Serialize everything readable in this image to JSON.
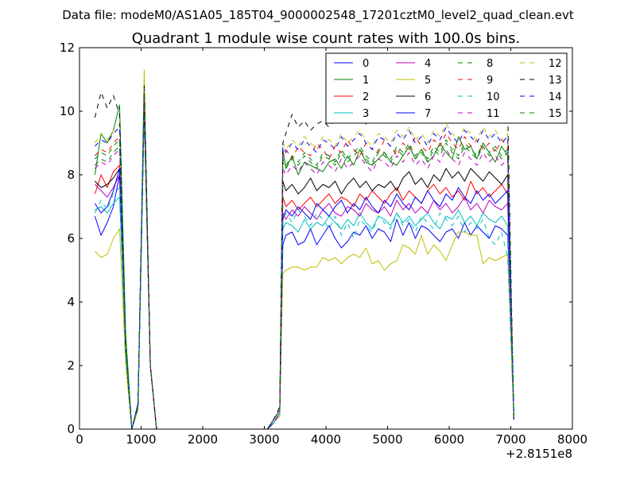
{
  "figure": {
    "suptitle": "Data file: modeM0/AS1A05_185T04_9000002548_17201cztM0_level2_quad_clean.evt"
  },
  "chart_data": {
    "type": "line",
    "title": "Quadrant 1 module wise count rates with 100.0s bins.",
    "xlabel": "",
    "ylabel": "",
    "xlim": [
      0,
      8000
    ],
    "ylim": [
      0,
      12
    ],
    "x_offset_label": "+2.8151e8",
    "xticks": [
      "0",
      "1000",
      "2000",
      "3000",
      "4000",
      "5000",
      "6000",
      "7000",
      "8000"
    ],
    "yticks": [
      "0",
      "2",
      "4",
      "6",
      "8",
      "10",
      "12"
    ],
    "grid": false,
    "legend_position": "top-right",
    "legend_columns": 4,
    "x": [
      250,
      350,
      450,
      550,
      650,
      750,
      850,
      950,
      1050,
      1150,
      1250,
      1350,
      1450,
      1550,
      1650,
      1750,
      1850,
      1950,
      2050,
      2150,
      2250,
      2350,
      2450,
      2550,
      2650,
      2750,
      2850,
      2950,
      3050,
      3150,
      3250,
      3300,
      3350,
      3450,
      3550,
      3650,
      3750,
      3850,
      3950,
      4050,
      4150,
      4250,
      4350,
      4450,
      4550,
      4650,
      4750,
      4850,
      4950,
      5050,
      5150,
      5250,
      5350,
      5450,
      5550,
      5650,
      5750,
      5850,
      5950,
      6050,
      6150,
      6250,
      6350,
      6450,
      6550,
      6650,
      6750,
      6850,
      6950,
      7050
    ],
    "series": [
      {
        "name": "0",
        "color": "#0000ff",
        "dash": "solid",
        "values": [
          6.7,
          6.1,
          6.5,
          7.0,
          8.0,
          2.5,
          0.0,
          0.7,
          10.0,
          2.0,
          0.0,
          0,
          0,
          0,
          0,
          0,
          0,
          0,
          0,
          0,
          0,
          0,
          0,
          0,
          0,
          0,
          0,
          0,
          0,
          0.2,
          0.5,
          5.8,
          6.1,
          6.2,
          5.8,
          5.9,
          6.3,
          5.8,
          6.1,
          6.4,
          6.0,
          5.7,
          5.9,
          6.2,
          6.1,
          6.4,
          6.0,
          6.3,
          6.2,
          5.9,
          6.6,
          6.1,
          6.5,
          6.0,
          6.4,
          6.3,
          6.1,
          5.9,
          6.2,
          6.3,
          6.0,
          6.5,
          6.1,
          6.4,
          6.2,
          6.0,
          6.4,
          6.3,
          6.1,
          0.3
        ]
      },
      {
        "name": "1",
        "color": "#008000",
        "dash": "solid",
        "values": [
          8.0,
          9.3,
          9.0,
          9.4,
          10.2,
          3.0,
          0.0,
          0.8,
          10.6,
          2.0,
          0.0,
          0,
          0,
          0,
          0,
          0,
          0,
          0,
          0,
          0,
          0,
          0,
          0,
          0,
          0,
          0,
          0,
          0,
          0,
          0.3,
          0.6,
          8.8,
          8.2,
          8.6,
          8.0,
          8.4,
          8.3,
          8.2,
          8.1,
          8.4,
          8.5,
          8.2,
          8.6,
          8.3,
          8.8,
          8.4,
          8.3,
          8.5,
          8.7,
          8.4,
          8.3,
          8.6,
          8.9,
          8.5,
          8.8,
          8.4,
          8.6,
          9.0,
          8.7,
          8.5,
          9.2,
          8.8,
          8.9,
          8.5,
          9.0,
          8.7,
          8.4,
          8.9,
          8.6,
          0.3
        ]
      },
      {
        "name": "2",
        "color": "#ff0000",
        "dash": "solid",
        "values": [
          7.4,
          8.0,
          7.6,
          8.1,
          8.3,
          2.5,
          0.0,
          0.8,
          10.3,
          2.0,
          0.0,
          0,
          0,
          0,
          0,
          0,
          0,
          0,
          0,
          0,
          0,
          0,
          0,
          0,
          0,
          0,
          0,
          0,
          0,
          0.2,
          0.5,
          7.3,
          7.0,
          7.2,
          6.9,
          7.1,
          7.3,
          7.0,
          7.2,
          7.4,
          7.1,
          7.3,
          7.2,
          7.0,
          7.4,
          7.2,
          7.5,
          7.3,
          7.1,
          7.4,
          7.6,
          7.2,
          7.5,
          7.3,
          7.1,
          7.5,
          7.7,
          7.4,
          7.6,
          7.3,
          7.5,
          7.2,
          7.8,
          7.4,
          7.6,
          7.3,
          7.5,
          7.7,
          7.4,
          0.3
        ]
      },
      {
        "name": "3",
        "color": "#00bfbf",
        "dash": "solid",
        "values": [
          6.9,
          7.0,
          6.8,
          7.1,
          7.3,
          2.5,
          0.0,
          0.7,
          10.1,
          2.0,
          0.0,
          0,
          0,
          0,
          0,
          0,
          0,
          0,
          0,
          0,
          0,
          0,
          0,
          0,
          0,
          0,
          0,
          0,
          0,
          0.2,
          0.5,
          6.3,
          6.5,
          6.4,
          6.2,
          6.6,
          6.3,
          6.5,
          6.4,
          6.7,
          6.5,
          6.3,
          6.6,
          6.4,
          6.8,
          6.5,
          6.3,
          6.7,
          6.6,
          6.4,
          6.8,
          6.5,
          6.7,
          6.4,
          6.6,
          6.8,
          6.5,
          6.3,
          6.7,
          6.6,
          6.9,
          6.5,
          6.7,
          6.4,
          6.8,
          6.6,
          6.5,
          6.7,
          6.4,
          0.3
        ]
      },
      {
        "name": "4",
        "color": "#bf00bf",
        "dash": "solid",
        "values": [
          7.7,
          7.5,
          7.3,
          7.6,
          8.0,
          2.5,
          0.0,
          0.8,
          10.4,
          2.0,
          0.0,
          0,
          0,
          0,
          0,
          0,
          0,
          0,
          0,
          0,
          0,
          0,
          0,
          0,
          0,
          0,
          0,
          0,
          0,
          0.2,
          0.5,
          6.8,
          6.6,
          6.9,
          6.7,
          7.0,
          6.8,
          6.6,
          6.9,
          7.1,
          6.8,
          6.7,
          7.0,
          6.9,
          6.7,
          7.1,
          6.9,
          6.8,
          7.0,
          6.7,
          7.2,
          6.9,
          7.1,
          6.8,
          7.0,
          6.8,
          7.2,
          6.9,
          7.1,
          6.8,
          7.0,
          7.3,
          6.9,
          7.1,
          6.8,
          7.2,
          7.0,
          6.9,
          7.1,
          0.3
        ]
      },
      {
        "name": "5",
        "color": "#bfbf00",
        "dash": "solid",
        "values": [
          5.6,
          5.4,
          5.5,
          6.0,
          6.3,
          2.0,
          0.0,
          0.6,
          11.3,
          2.0,
          0.0,
          0,
          0,
          0,
          0,
          0,
          0,
          0,
          0,
          0,
          0,
          0,
          0,
          0,
          0,
          0,
          0,
          0,
          0,
          0.2,
          0.4,
          4.9,
          5.0,
          5.1,
          5.1,
          5.0,
          5.1,
          5.1,
          5.4,
          5.3,
          5.4,
          5.2,
          5.4,
          5.5,
          5.4,
          5.7,
          5.2,
          5.3,
          5.0,
          5.2,
          5.3,
          5.8,
          5.7,
          5.5,
          6.1,
          5.5,
          5.8,
          5.6,
          5.3,
          5.8,
          6.2,
          6.2,
          6.1,
          6.1,
          5.2,
          5.4,
          5.3,
          5.4,
          5.5,
          0.3
        ]
      },
      {
        "name": "6",
        "color": "#000000",
        "dash": "solid",
        "values": [
          7.8,
          7.6,
          7.7,
          7.9,
          8.2,
          2.5,
          0.0,
          0.8,
          10.5,
          2.0,
          0.0,
          0,
          0,
          0,
          0,
          0,
          0,
          0,
          0,
          0,
          0,
          0,
          0,
          0,
          0,
          0,
          0,
          0,
          0,
          0.3,
          0.6,
          7.8,
          7.5,
          7.7,
          7.4,
          7.6,
          7.9,
          7.5,
          7.7,
          7.6,
          7.8,
          7.4,
          7.7,
          7.9,
          7.6,
          7.8,
          7.5,
          7.7,
          7.6,
          7.8,
          7.5,
          7.9,
          8.1,
          7.7,
          7.9,
          7.6,
          8.0,
          7.8,
          8.2,
          7.9,
          8.1,
          7.8,
          8.2,
          8.0,
          7.8,
          8.1,
          7.9,
          7.7,
          8.0,
          0.3
        ]
      },
      {
        "name": "7",
        "color": "#0000ff",
        "dash": "solid",
        "values": [
          7.1,
          6.8,
          7.0,
          7.5,
          8.2,
          2.5,
          0.0,
          0.7,
          10.2,
          2.0,
          0.0,
          0,
          0,
          0,
          0,
          0,
          0,
          0,
          0,
          0,
          0,
          0,
          0,
          0,
          0,
          0,
          0,
          0,
          0,
          0.2,
          0.5,
          6.6,
          6.9,
          6.7,
          7.0,
          6.8,
          6.6,
          7.1,
          6.9,
          6.7,
          7.0,
          7.2,
          6.8,
          7.1,
          6.9,
          7.3,
          7.0,
          6.8,
          7.2,
          7.0,
          7.4,
          7.1,
          6.9,
          7.3,
          7.1,
          7.5,
          7.2,
          7.0,
          7.4,
          7.2,
          7.6,
          7.3,
          7.1,
          7.5,
          7.2,
          7.4,
          7.1,
          7.3,
          7.5,
          0.3
        ]
      },
      {
        "name": "8",
        "color": "#008000",
        "dash": "dashed",
        "values": [
          8.3,
          8.5,
          8.4,
          8.7,
          8.9,
          2.5,
          0.0,
          0.8,
          10.6,
          2.0,
          0.0,
          0,
          0,
          0,
          0,
          0,
          0,
          0,
          0,
          0,
          0,
          0,
          0,
          0,
          0,
          0,
          0,
          0,
          0,
          0.3,
          0.6,
          8.4,
          8.2,
          8.5,
          8.3,
          8.6,
          8.4,
          8.2,
          8.6,
          8.5,
          8.3,
          8.7,
          8.4,
          8.6,
          8.8,
          8.5,
          8.3,
          8.7,
          8.6,
          8.4,
          8.8,
          8.6,
          8.9,
          8.5,
          8.7,
          8.4,
          8.8,
          8.6,
          9.0,
          8.7,
          8.5,
          8.9,
          8.7,
          8.5,
          8.9,
          8.6,
          8.8,
          8.5,
          8.7,
          0.3
        ]
      },
      {
        "name": "9",
        "color": "#ff0000",
        "dash": "dashed",
        "values": [
          8.6,
          8.8,
          8.7,
          9.0,
          9.2,
          2.5,
          0.0,
          0.8,
          10.5,
          2.0,
          0.0,
          0,
          0,
          0,
          0,
          0,
          0,
          0,
          0,
          0,
          0,
          0,
          0,
          0,
          0,
          0,
          0,
          0,
          0,
          0.3,
          0.6,
          8.6,
          8.8,
          8.5,
          8.9,
          8.7,
          8.6,
          9.0,
          8.8,
          8.5,
          8.9,
          8.7,
          9.1,
          8.8,
          8.6,
          9.0,
          8.8,
          8.7,
          9.1,
          8.9,
          8.6,
          9.0,
          8.8,
          9.2,
          8.9,
          8.7,
          9.1,
          8.9,
          9.3,
          9.0,
          8.8,
          9.2,
          8.9,
          9.1,
          8.8,
          9.0,
          8.7,
          9.1,
          8.9,
          0.3
        ]
      },
      {
        "name": "10",
        "color": "#00bfbf",
        "dash": "dashed",
        "values": [
          6.8,
          7.2,
          6.9,
          7.4,
          7.6,
          2.5,
          0.0,
          0.7,
          10.0,
          2.0,
          0.0,
          0,
          0,
          0,
          0,
          0,
          0,
          0,
          0,
          0,
          0,
          0,
          0,
          0,
          0,
          0,
          0,
          0,
          0,
          0.2,
          0.5,
          6.6,
          6.8,
          6.5,
          6.9,
          6.7,
          6.4,
          6.8,
          6.6,
          6.3,
          6.7,
          6.1,
          6.5,
          6.0,
          6.6,
          6.4,
          6.2,
          6.7,
          6.5,
          6.3,
          6.8,
          6.4,
          6.6,
          6.2,
          6.7,
          6.5,
          6.3,
          6.8,
          6.6,
          6.4,
          6.7,
          6.2,
          6.5,
          6.3,
          6.6,
          6.0,
          5.8,
          6.2,
          5.4,
          0.3
        ]
      },
      {
        "name": "11",
        "color": "#bf00bf",
        "dash": "dashed",
        "values": [
          8.2,
          8.4,
          8.3,
          8.6,
          8.8,
          2.5,
          0.0,
          0.8,
          10.4,
          2.0,
          0.0,
          0,
          0,
          0,
          0,
          0,
          0,
          0,
          0,
          0,
          0,
          0,
          0,
          0,
          0,
          0,
          0,
          0,
          0,
          0.3,
          0.6,
          8.2,
          8.0,
          8.3,
          8.1,
          8.4,
          8.2,
          8.0,
          8.4,
          8.3,
          8.1,
          8.5,
          8.2,
          8.4,
          8.6,
          8.3,
          8.1,
          8.5,
          8.4,
          8.2,
          8.6,
          8.4,
          8.7,
          8.3,
          8.5,
          8.2,
          8.6,
          8.4,
          8.8,
          8.5,
          8.3,
          8.7,
          8.5,
          8.3,
          8.7,
          8.4,
          8.6,
          8.3,
          8.5,
          0.3
        ]
      },
      {
        "name": "12",
        "color": "#bfbf00",
        "dash": "dashed",
        "values": [
          9.0,
          9.3,
          9.1,
          9.4,
          9.6,
          2.5,
          0.0,
          0.8,
          10.9,
          2.0,
          0.0,
          0,
          0,
          0,
          0,
          0,
          0,
          0,
          0,
          0,
          0,
          0,
          0,
          0,
          0,
          0,
          0,
          0,
          0,
          0.3,
          0.6,
          9.0,
          8.8,
          9.1,
          8.9,
          9.2,
          9.0,
          8.8,
          9.2,
          9.1,
          8.9,
          9.3,
          9.0,
          9.2,
          9.4,
          9.1,
          8.9,
          9.3,
          9.2,
          9.0,
          9.4,
          9.2,
          9.5,
          9.1,
          9.3,
          9.0,
          9.4,
          9.2,
          9.6,
          9.3,
          9.1,
          9.5,
          9.3,
          9.1,
          9.5,
          9.2,
          9.4,
          9.1,
          9.3,
          0.3
        ]
      },
      {
        "name": "13",
        "color": "#000000",
        "dash": "dashed",
        "values": [
          9.8,
          10.6,
          10.1,
          10.5,
          9.9,
          2.5,
          0.0,
          0.8,
          10.8,
          2.0,
          0.0,
          0,
          0,
          0,
          0,
          0,
          0,
          0,
          0,
          0,
          0,
          0,
          0,
          0,
          0,
          0,
          0,
          0,
          0,
          0.3,
          0.7,
          9.0,
          9.3,
          9.9,
          9.5,
          9.7,
          9.4,
          9.6,
          9.7,
          9.5,
          9.8,
          9.6,
          9.9,
          9.7,
          9.8,
          9.6,
          10.0,
          9.8,
          9.7,
          10.1,
          9.9,
          10.0,
          10.3,
          10.1,
          10.4,
          10.2,
          10.6,
          10.9,
          10.5,
          10.3,
          10.7,
          10.4,
          10.6,
          10.2,
          10.5,
          10.1,
          9.9,
          10.3,
          10.0,
          0.3
        ]
      },
      {
        "name": "14",
        "color": "#0000ff",
        "dash": "dashed",
        "values": [
          8.9,
          9.1,
          9.0,
          9.3,
          9.5,
          2.5,
          0.0,
          0.8,
          10.7,
          2.0,
          0.0,
          0,
          0,
          0,
          0,
          0,
          0,
          0,
          0,
          0,
          0,
          0,
          0,
          0,
          0,
          0,
          0,
          0,
          0,
          0.3,
          0.6,
          8.9,
          8.7,
          9.0,
          8.8,
          9.1,
          8.9,
          8.7,
          9.1,
          9.0,
          8.8,
          9.2,
          8.9,
          9.1,
          9.3,
          9.0,
          8.8,
          9.2,
          9.1,
          8.9,
          9.3,
          9.1,
          9.4,
          9.0,
          9.2,
          8.9,
          9.3,
          9.1,
          9.5,
          9.2,
          9.0,
          9.4,
          9.2,
          9.0,
          9.4,
          9.1,
          9.3,
          9.0,
          9.2,
          0.3
        ]
      },
      {
        "name": "15",
        "color": "#008000",
        "dash": "dashed",
        "values": [
          8.5,
          8.7,
          8.6,
          8.9,
          9.1,
          2.5,
          0.0,
          0.8,
          10.6,
          2.0,
          0.0,
          0,
          0,
          0,
          0,
          0,
          0,
          0,
          0,
          0,
          0,
          0,
          0,
          0,
          0,
          0,
          0,
          0,
          0,
          0.3,
          0.6,
          8.5,
          8.3,
          8.6,
          8.4,
          8.7,
          8.5,
          8.3,
          8.7,
          8.6,
          8.4,
          8.8,
          8.5,
          8.7,
          8.9,
          8.6,
          8.4,
          8.8,
          8.7,
          8.5,
          8.9,
          8.7,
          9.0,
          8.6,
          8.8,
          8.5,
          8.9,
          8.7,
          9.1,
          8.8,
          8.6,
          9.0,
          8.8,
          8.6,
          9.0,
          8.7,
          8.9,
          8.6,
          8.8,
          0.3
        ]
      }
    ]
  }
}
